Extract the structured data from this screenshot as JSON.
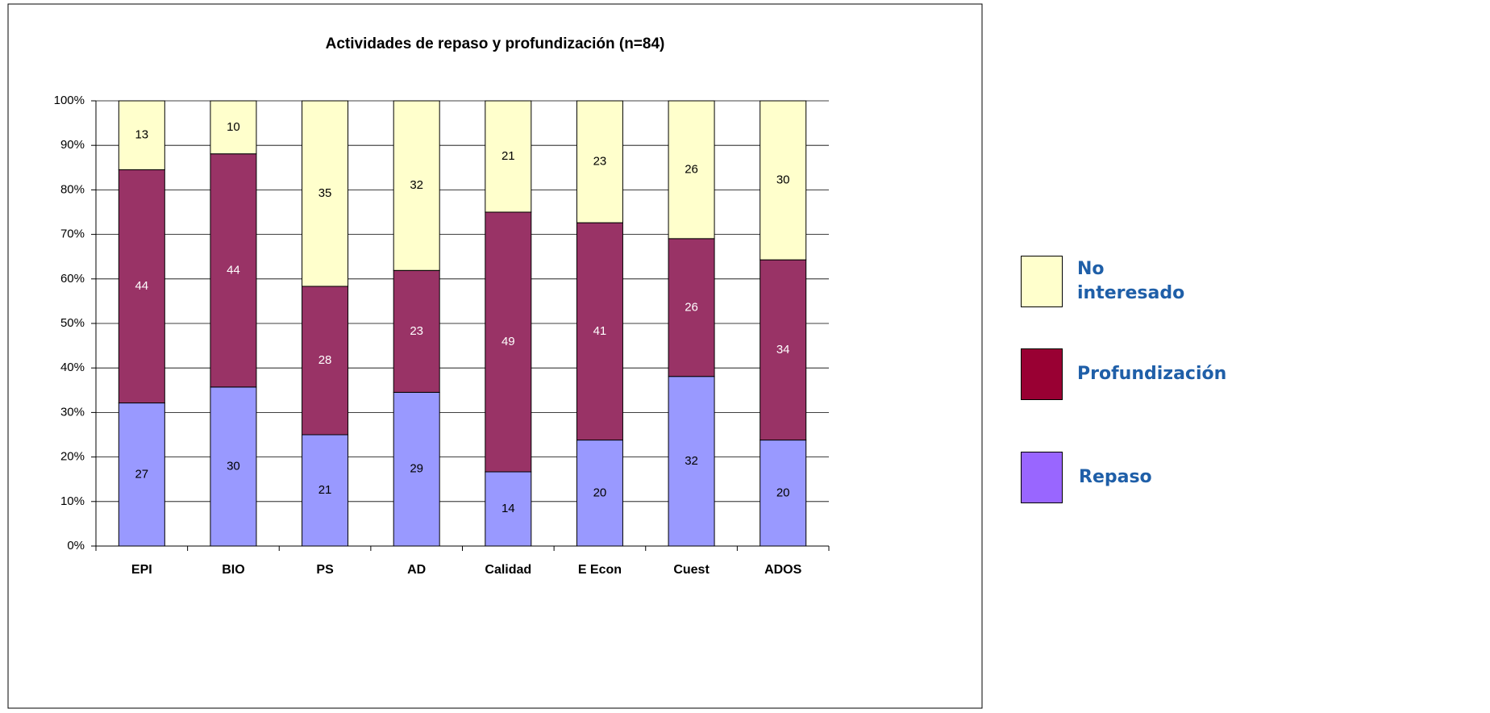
{
  "chart_data": {
    "type": "bar",
    "stacked": "percent",
    "title": "Actividades de repaso y profundización (n=84)",
    "categories": [
      "EPI",
      "BIO",
      "PS",
      "AD",
      "Calidad",
      "E Econ",
      "Cuest",
      "ADOS"
    ],
    "series": [
      {
        "name": "Repaso",
        "color": "#9999ff",
        "legend_color": "#9966ff",
        "label_color": "#000000",
        "values": [
          27,
          30,
          21,
          29,
          14,
          20,
          32,
          20
        ]
      },
      {
        "name": "Profundización",
        "color": "#993366",
        "legend_color": "#990033",
        "label_color": "#ffffff",
        "values": [
          44,
          44,
          28,
          23,
          49,
          41,
          26,
          34
        ]
      },
      {
        "name": "No interesado",
        "color": "#ffffcc",
        "legend_color": "#ffffcc",
        "label_color": "#000000",
        "values": [
          13,
          10,
          35,
          32,
          21,
          23,
          26,
          30
        ]
      }
    ],
    "ylim": [
      0,
      100
    ],
    "yticks": [
      {
        "value": 0,
        "label": "0%"
      },
      {
        "value": 10,
        "label": "10%"
      },
      {
        "value": 20,
        "label": "20%"
      },
      {
        "value": 30,
        "label": "30%"
      },
      {
        "value": 40,
        "label": "40%"
      },
      {
        "value": 50,
        "label": "50%"
      },
      {
        "value": 60,
        "label": "60%"
      },
      {
        "value": 70,
        "label": "70%"
      },
      {
        "value": 80,
        "label": "80%"
      },
      {
        "value": 90,
        "label": "90%"
      },
      {
        "value": 100,
        "label": "100%"
      }
    ],
    "grid": true
  }
}
